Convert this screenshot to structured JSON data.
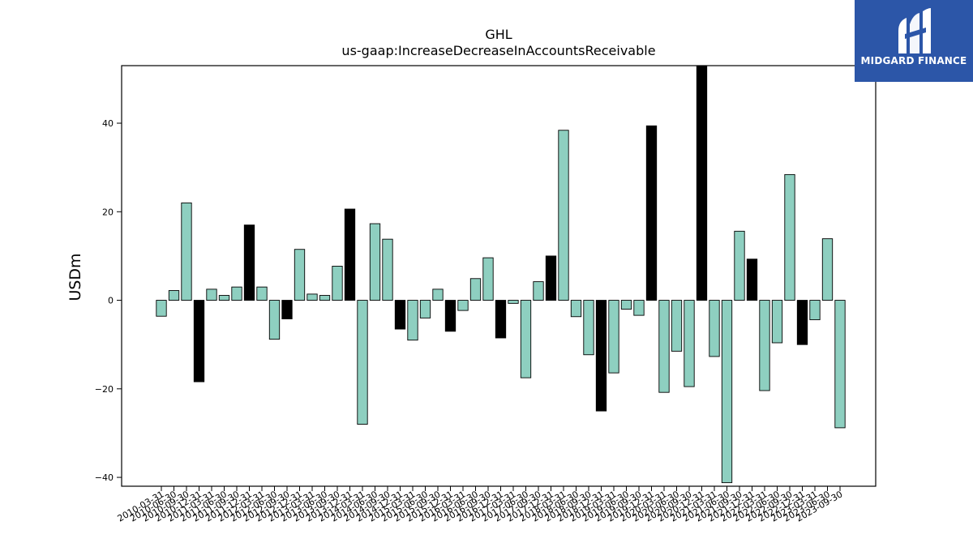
{
  "brand": {
    "name": "MIDGARD FINANCE",
    "bg_color": "#2c56a8"
  },
  "chart_data": {
    "type": "bar",
    "title": "GHL",
    "subtitle": "us-gaap:IncreaseDecreaseInAccountsReceivable",
    "xlabel": "",
    "ylabel": "USDm",
    "ylim": [
      -42,
      53
    ],
    "yticks": [
      -40,
      -20,
      0,
      20,
      40
    ],
    "grid": false,
    "colors": {
      "normal": "#8ecfc0",
      "highlight": "#000000",
      "edge": "#000000"
    },
    "categories": [
      "2010-03-31",
      "2010-06-30",
      "2010-09-30",
      "2010-12-31",
      "2011-03-31",
      "2011-06-30",
      "2011-09-30",
      "2011-12-31",
      "2012-03-31",
      "2012-06-30",
      "2012-09-30",
      "2012-12-31",
      "2013-03-31",
      "2013-06-30",
      "2013-09-30",
      "2013-12-31",
      "2014-03-31",
      "2014-06-30",
      "2014-09-30",
      "2014-12-31",
      "2015-03-31",
      "2015-06-30",
      "2015-09-30",
      "2015-12-31",
      "2016-03-31",
      "2016-06-30",
      "2016-09-30",
      "2016-12-31",
      "2017-03-31",
      "2017-06-30",
      "2017-09-30",
      "2017-12-31",
      "2018-03-31",
      "2018-06-30",
      "2018-09-30",
      "2018-12-31",
      "2019-03-31",
      "2019-06-30",
      "2019-09-30",
      "2019-12-31",
      "2020-03-31",
      "2020-06-30",
      "2020-09-30",
      "2020-12-31",
      "2021-03-31",
      "2021-06-30",
      "2021-09-30",
      "2021-12-31",
      "2022-03-31",
      "2022-06-30",
      "2022-09-30",
      "2022-12-31",
      "2023-03-31",
      "2023-06-30",
      "2023-09-30"
    ],
    "values": [
      -3.6,
      2.2,
      22.0,
      -18.4,
      2.5,
      1.1,
      3.0,
      17.0,
      3.0,
      -8.8,
      -4.2,
      11.5,
      1.4,
      1.1,
      7.7,
      20.6,
      -28.0,
      17.3,
      13.8,
      -6.5,
      -9.0,
      -4.0,
      2.5,
      -7.0,
      -2.3,
      4.9,
      9.6,
      -8.5,
      -0.7,
      -17.5,
      4.2,
      10.0,
      38.4,
      -3.7,
      -12.3,
      -25.0,
      -16.4,
      -2.0,
      -3.4,
      39.4,
      -20.8,
      -11.5,
      -19.5,
      53.0,
      -12.7,
      -41.2,
      15.6,
      9.3,
      -20.4,
      -9.6,
      28.4,
      -10.0,
      -4.4,
      13.9,
      -28.8
    ],
    "highlight": [
      false,
      false,
      false,
      true,
      false,
      false,
      false,
      true,
      false,
      false,
      true,
      false,
      false,
      false,
      false,
      true,
      false,
      false,
      false,
      true,
      false,
      false,
      false,
      true,
      false,
      false,
      false,
      true,
      false,
      false,
      false,
      true,
      false,
      false,
      false,
      true,
      false,
      false,
      false,
      true,
      false,
      false,
      false,
      true,
      false,
      false,
      false,
      true,
      false,
      false,
      false,
      true,
      false,
      false,
      false
    ]
  }
}
